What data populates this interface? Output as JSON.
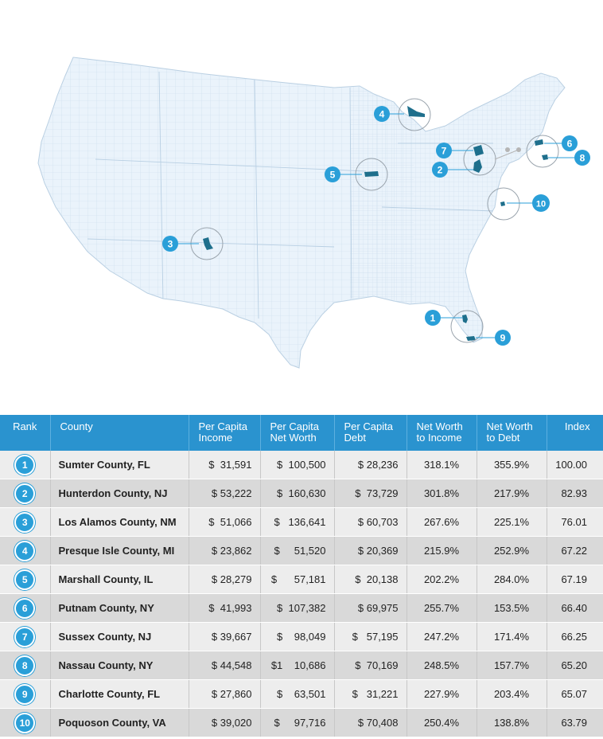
{
  "colors": {
    "header_bg": "#2a93cf",
    "badge": "#2a9fd8",
    "county_fill": "#1e6f8c",
    "map_fill": "#e9f2fa",
    "map_stroke": "#c9dcec"
  },
  "map": {
    "markers": [
      {
        "rank": "1",
        "county": "Sumter County, FL"
      },
      {
        "rank": "2",
        "county": "Hunterdon County, NJ"
      },
      {
        "rank": "3",
        "county": "Los Alamos County, NM"
      },
      {
        "rank": "4",
        "county": "Presque Isle County, MI"
      },
      {
        "rank": "5",
        "county": "Marshall County, IL"
      },
      {
        "rank": "6",
        "county": "Putnam County, NY"
      },
      {
        "rank": "7",
        "county": "Sussex County, NJ"
      },
      {
        "rank": "8",
        "county": "Nassau County, NY"
      },
      {
        "rank": "9",
        "county": "Charlotte County, FL"
      },
      {
        "rank": "10",
        "county": "Poquoson County, VA"
      }
    ]
  },
  "table": {
    "headers": {
      "rank": "Rank",
      "county": "County",
      "income_l1": "Per Capita",
      "income_l2": "Income",
      "networth_l1": "Per Capita",
      "networth_l2": "Net Worth",
      "debt_l1": "Per Capita",
      "debt_l2": "Debt",
      "nwi_l1": "Net Worth",
      "nwi_l2": "to Income",
      "nwd_l1": "Net Worth",
      "nwd_l2": "to Debt",
      "index": "Index"
    },
    "rows": [
      {
        "rank": "1",
        "county": "Sumter County, FL",
        "income": "$  31,591",
        "networth": "$  100,500",
        "debt": "$ 28,236",
        "nw_income": "318.1%",
        "nw_debt": "355.9%",
        "index": "100.00"
      },
      {
        "rank": "2",
        "county": "Hunterdon County, NJ",
        "income": "$ 53,222",
        "networth": "$  160,630",
        "debt": "$  73,729",
        "nw_income": "301.8%",
        "nw_debt": "217.9%",
        "index": "82.93"
      },
      {
        "rank": "3",
        "county": "Los Alamos County, NM",
        "income": "$  51,066",
        "networth": "$   136,641",
        "debt": "$ 60,703",
        "nw_income": "267.6%",
        "nw_debt": "225.1%",
        "index": "76.01"
      },
      {
        "rank": "4",
        "county": "Presque Isle County, MI",
        "income": "$ 23,862",
        "networth": "$     51,520",
        "debt": "$ 20,369",
        "nw_income": "215.9%",
        "nw_debt": "252.9%",
        "index": "67.22"
      },
      {
        "rank": "5",
        "county": "Marshall County, IL",
        "income": "$ 28,279",
        "networth": "$      57,181",
        "debt": "$  20,138",
        "nw_income": "202.2%",
        "nw_debt": "284.0%",
        "index": "67.19"
      },
      {
        "rank": "6",
        "county": "Putnam County, NY",
        "income": "$  41,993",
        "networth": "$  107,382",
        "debt": "$ 69,975",
        "nw_income": "255.7%",
        "nw_debt": "153.5%",
        "index": "66.40"
      },
      {
        "rank": "7",
        "county": "Sussex County, NJ",
        "income": "$ 39,667",
        "networth": "$    98,049",
        "debt": "$   57,195",
        "nw_income": "247.2%",
        "nw_debt": "171.4%",
        "index": "66.25"
      },
      {
        "rank": "8",
        "county": "Nassau County, NY",
        "income": "$ 44,548",
        "networth": "$1    10,686",
        "debt": "$  70,169",
        "nw_income": "248.5%",
        "nw_debt": "157.7%",
        "index": "65.20"
      },
      {
        "rank": "9",
        "county": "Charlotte County, FL",
        "income": "$ 27,860",
        "networth": "$    63,501",
        "debt": "$   31,221",
        "nw_income": "227.9%",
        "nw_debt": "203.4%",
        "index": "65.07"
      },
      {
        "rank": "10",
        "county": "Poquoson County, VA",
        "income": "$ 39,020",
        "networth": "$     97,716",
        "debt": "$ 70,408",
        "nw_income": "250.4%",
        "nw_debt": "138.8%",
        "index": "63.79"
      }
    ]
  }
}
